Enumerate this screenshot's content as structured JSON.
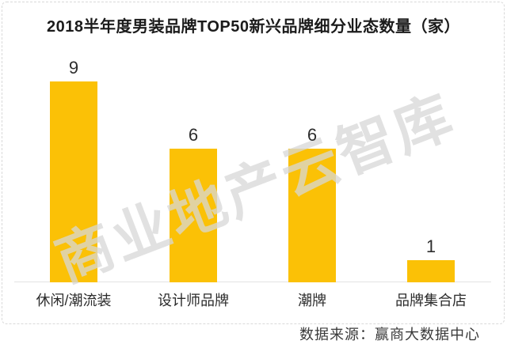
{
  "chart_data": {
    "type": "bar",
    "title": "2018半年度男装品牌TOP50新兴品牌细分业态数量（家）",
    "categories": [
      "休闲/潮流装",
      "设计师品牌",
      "潮牌",
      "品牌集合店"
    ],
    "values": [
      9,
      6,
      6,
      1
    ],
    "xlabel": "",
    "ylabel": "",
    "ylim": [
      0,
      9
    ],
    "grid": "off",
    "legend": "none",
    "data_labels": [
      "9",
      "6",
      "6",
      "1"
    ],
    "bar_color": "#FBC106"
  },
  "watermark_text": "商业地产云智库",
  "source_text": "数据来源：赢商大数据中心",
  "colors": {
    "title": "#1b1b1b",
    "label": "#2b2b2b",
    "watermark": "#d7d7d7",
    "frame_border": "#d9d9d9",
    "background": "#ffffff"
  }
}
